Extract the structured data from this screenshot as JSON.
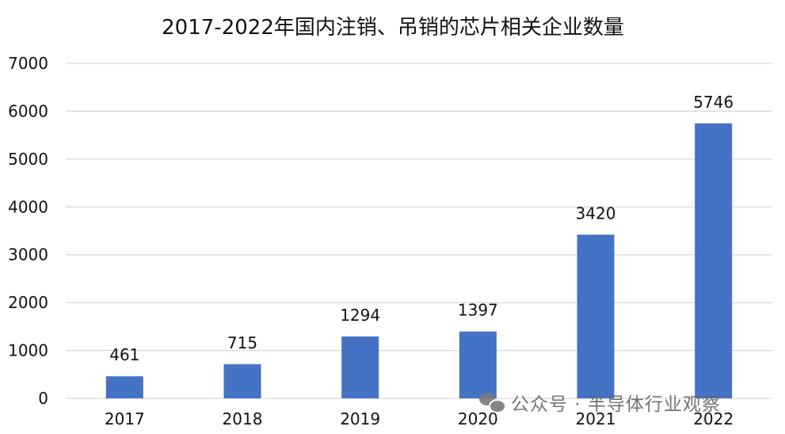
{
  "chart_data": {
    "type": "bar",
    "title": "2017-2022年国内注销、吊销的芯片相关企业数量",
    "categories": [
      "2017",
      "2018",
      "2019",
      "2020",
      "2021",
      "2022"
    ],
    "values": [
      461,
      715,
      1294,
      1397,
      3420,
      5746
    ],
    "ylim": [
      0,
      7000
    ],
    "yticks": [
      0,
      1000,
      2000,
      3000,
      4000,
      5000,
      6000,
      7000
    ],
    "grid": true,
    "data_labels": true,
    "colors": {
      "bar": "#4472c4",
      "grid": "#d9d9d9",
      "text": "#111111"
    }
  },
  "watermark": {
    "text": "公众号 · 半导体行业观察",
    "icon": "wechat-icon"
  }
}
